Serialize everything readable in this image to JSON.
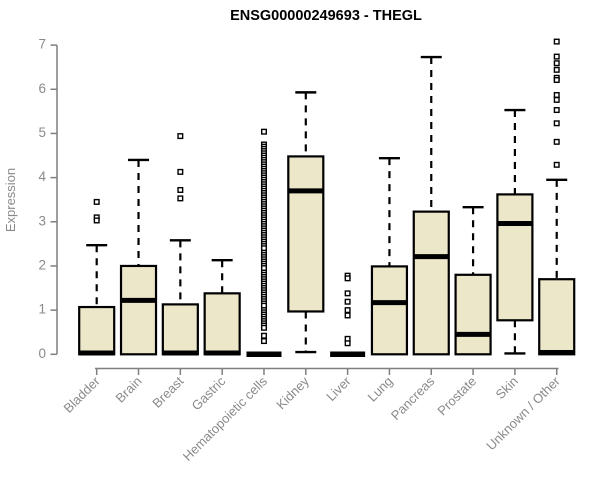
{
  "colors": {
    "background": "#ffffff",
    "box_fill": "#ede7ca",
    "box_stroke": "#000000",
    "median": "#000000",
    "whisker": "#000000",
    "outlier_stroke": "#000000",
    "outlier_fill": "#ffffff",
    "axis_line": "#7f7f7f",
    "axis_text": "#8a8a8a",
    "title_text": "#000000"
  },
  "chart_data": {
    "type": "boxplot",
    "title": "ENSG00000249693 - THEGL",
    "xlabel": "",
    "ylabel": "Expression",
    "ylim": [
      0,
      7
    ],
    "yticks": [
      0,
      1,
      2,
      3,
      4,
      5,
      6,
      7
    ],
    "grid": false,
    "legend": null,
    "categories": [
      "Bladder",
      "Brain",
      "Breast",
      "Gastric",
      "Hematopoietic cells",
      "Kidney",
      "Liver",
      "Lung",
      "Pancreas",
      "Prostate",
      "Skin",
      "Unknown / Other"
    ],
    "boxes": [
      {
        "category": "Bladder",
        "slug": "bladder",
        "whisker_low": 0,
        "q1": 0,
        "median": 0.03,
        "q3": 1.07,
        "whisker_high": 2.47,
        "outliers": [
          3.45,
          3.1,
          3.03
        ]
      },
      {
        "category": "Brain",
        "slug": "brain",
        "whisker_low": 0,
        "q1": 0,
        "median": 1.22,
        "q3": 2.0,
        "whisker_high": 4.4,
        "outliers": []
      },
      {
        "category": "Breast",
        "slug": "breast",
        "whisker_low": 0,
        "q1": 0,
        "median": 0.03,
        "q3": 1.13,
        "whisker_high": 2.58,
        "outliers": [
          4.94,
          4.13,
          3.72,
          3.53
        ]
      },
      {
        "category": "Gastric",
        "slug": "gastric",
        "whisker_low": 0,
        "q1": 0,
        "median": 0.03,
        "q3": 1.38,
        "whisker_high": 2.13,
        "outliers": []
      },
      {
        "category": "Hematopoietic cells",
        "slug": "hematopoietic-cells",
        "whisker_low": 0,
        "q1": 0,
        "median": 0,
        "q3": 0,
        "whisker_high": 0,
        "outliers": [
          5.04,
          4.75,
          4.7,
          4.65,
          4.6,
          4.55,
          4.5,
          4.45,
          4.4,
          4.35,
          4.3,
          4.25,
          4.2,
          4.15,
          4.1,
          4.05,
          4.0,
          3.95,
          3.9,
          3.85,
          3.8,
          3.75,
          3.7,
          3.65,
          3.6,
          3.55,
          3.5,
          3.45,
          3.4,
          3.35,
          3.3,
          3.25,
          3.2,
          3.15,
          3.1,
          3.05,
          3.0,
          2.95,
          2.9,
          2.85,
          2.8,
          2.75,
          2.7,
          2.65,
          2.6,
          2.55,
          2.5,
          2.45,
          2.4,
          2.3,
          2.25,
          2.2,
          2.15,
          2.1,
          2.05,
          2.0,
          1.95,
          1.85,
          1.8,
          1.75,
          1.7,
          1.65,
          1.6,
          1.55,
          1.5,
          1.45,
          1.4,
          1.35,
          1.3,
          1.25,
          1.2,
          1.15,
          1.1,
          1.0,
          0.95,
          0.9,
          0.85,
          0.8,
          0.75,
          0.7,
          0.65,
          0.6,
          0.42,
          0.3
        ]
      },
      {
        "category": "Kidney",
        "slug": "kidney",
        "whisker_low": 0.05,
        "q1": 0.97,
        "median": 3.7,
        "q3": 4.48,
        "whisker_high": 5.93,
        "outliers": []
      },
      {
        "category": "Liver",
        "slug": "liver",
        "whisker_low": 0,
        "q1": 0,
        "median": 0,
        "q3": 0,
        "whisker_high": 0,
        "outliers": [
          1.78,
          1.72,
          1.38,
          1.19,
          1.0,
          0.88,
          0.35,
          0.25
        ]
      },
      {
        "category": "Lung",
        "slug": "lung",
        "whisker_low": 0,
        "q1": 0,
        "median": 1.17,
        "q3": 1.99,
        "whisker_high": 4.44,
        "outliers": []
      },
      {
        "category": "Pancreas",
        "slug": "pancreas",
        "whisker_low": 0,
        "q1": 0,
        "median": 2.21,
        "q3": 3.23,
        "whisker_high": 6.73,
        "outliers": []
      },
      {
        "category": "Prostate",
        "slug": "prostate",
        "whisker_low": 0,
        "q1": 0,
        "median": 0.45,
        "q3": 1.8,
        "whisker_high": 3.33,
        "outliers": []
      },
      {
        "category": "Skin",
        "slug": "skin",
        "whisker_low": 0.02,
        "q1": 0.77,
        "median": 2.96,
        "q3": 3.62,
        "whisker_high": 5.53,
        "outliers": []
      },
      {
        "category": "Unknown / Other",
        "slug": "unknown-other",
        "whisker_low": 0,
        "q1": 0,
        "median": 0.04,
        "q3": 1.7,
        "whisker_high": 3.95,
        "outliers": [
          7.08,
          6.74,
          6.59,
          6.44,
          6.26,
          6.21,
          5.87,
          5.76,
          5.53,
          5.23,
          4.81,
          4.29
        ]
      }
    ]
  }
}
